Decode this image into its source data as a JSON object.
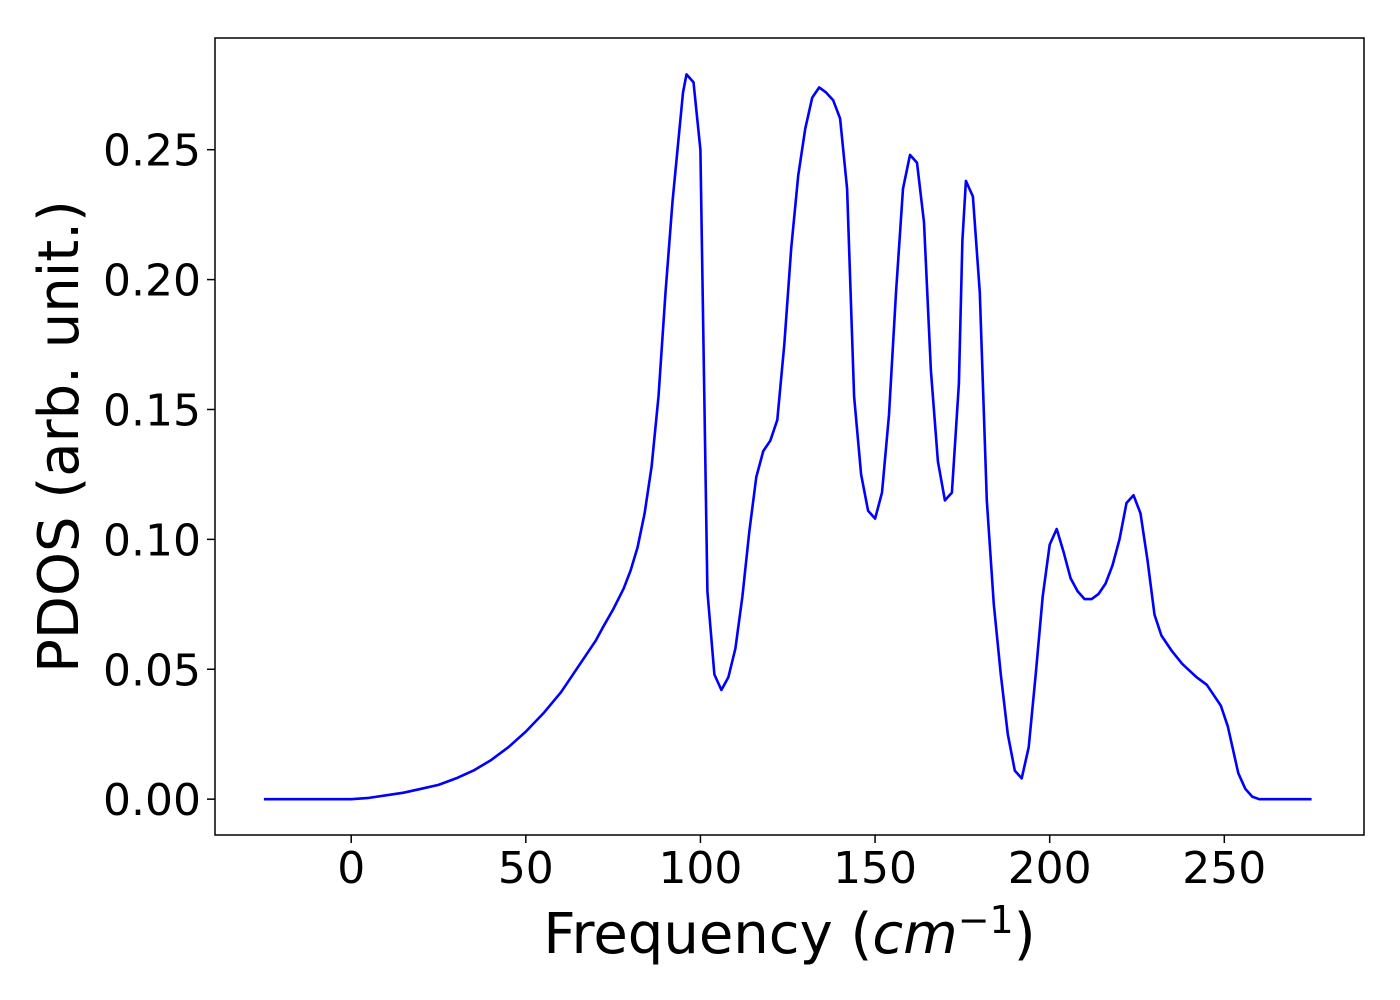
{
  "chart_data": {
    "type": "line",
    "title": "",
    "xlabel_main": "Frequency (",
    "xlabel_unit": "cm",
    "xlabel_exp": "−1",
    "xlabel_close": ")",
    "ylabel": "PDOS (arb. unit.)",
    "xlim": [
      -39,
      290
    ],
    "ylim": [
      -0.0138,
      0.293
    ],
    "xticks": [
      0,
      50,
      100,
      150,
      200,
      250
    ],
    "xtick_labels": [
      "0",
      "50",
      "100",
      "150",
      "200",
      "250"
    ],
    "yticks": [
      0.0,
      0.05,
      0.1,
      0.15,
      0.2,
      0.25
    ],
    "ytick_labels": [
      "0.00",
      "0.05",
      "0.10",
      "0.15",
      "0.20",
      "0.25"
    ],
    "grid": false,
    "legend": "none",
    "series": [
      {
        "color": "#0000ff",
        "x": [
          -25,
          0,
          5,
          10,
          15,
          20,
          25,
          30,
          35,
          40,
          45,
          50,
          55,
          60,
          62,
          65,
          70,
          72,
          75,
          78,
          80,
          82,
          84,
          86,
          88,
          90,
          92,
          94,
          95,
          96,
          98,
          100,
          102,
          104,
          106,
          108,
          110,
          112,
          114,
          116,
          118,
          120,
          122,
          124,
          126,
          128,
          130,
          132,
          134,
          136,
          138,
          140,
          142,
          144,
          146,
          148,
          150,
          152,
          154,
          156,
          158,
          160,
          162,
          164,
          166,
          168,
          170,
          172,
          174,
          175,
          176,
          178,
          180,
          182,
          184,
          186,
          188,
          190,
          192,
          194,
          196,
          198,
          200,
          202,
          204,
          206,
          208,
          210,
          212,
          214,
          216,
          218,
          220,
          222,
          224,
          226,
          228,
          230,
          232,
          235,
          238,
          242,
          245,
          247,
          249,
          251,
          252,
          254,
          256,
          258,
          260,
          265,
          275
        ],
        "y": [
          0.0,
          0.0,
          0.0005,
          0.0015,
          0.0025,
          0.004,
          0.0055,
          0.008,
          0.011,
          0.015,
          0.02,
          0.026,
          0.033,
          0.041,
          0.045,
          0.051,
          0.061,
          0.066,
          0.073,
          0.081,
          0.088,
          0.097,
          0.11,
          0.128,
          0.155,
          0.195,
          0.23,
          0.258,
          0.272,
          0.279,
          0.276,
          0.25,
          0.08,
          0.048,
          0.042,
          0.047,
          0.058,
          0.078,
          0.103,
          0.124,
          0.134,
          0.138,
          0.146,
          0.175,
          0.212,
          0.24,
          0.258,
          0.27,
          0.274,
          0.272,
          0.269,
          0.262,
          0.235,
          0.155,
          0.125,
          0.111,
          0.108,
          0.118,
          0.148,
          0.195,
          0.235,
          0.248,
          0.245,
          0.222,
          0.165,
          0.13,
          0.115,
          0.118,
          0.16,
          0.215,
          0.238,
          0.232,
          0.195,
          0.115,
          0.075,
          0.048,
          0.025,
          0.011,
          0.008,
          0.02,
          0.048,
          0.078,
          0.098,
          0.104,
          0.095,
          0.085,
          0.08,
          0.077,
          0.077,
          0.079,
          0.083,
          0.09,
          0.1,
          0.114,
          0.117,
          0.11,
          0.092,
          0.071,
          0.063,
          0.057,
          0.052,
          0.047,
          0.044,
          0.04,
          0.036,
          0.028,
          0.022,
          0.01,
          0.004,
          0.001,
          0.0,
          0.0,
          0.0
        ]
      }
    ]
  }
}
